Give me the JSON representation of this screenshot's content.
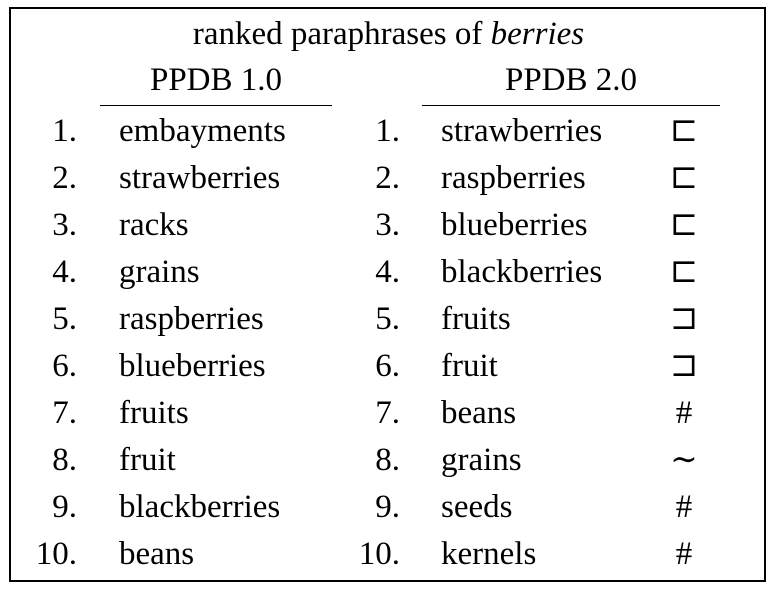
{
  "table": {
    "title_prefix": "ranked paraphrases of ",
    "title_word": "berries",
    "left_header": "PPDB 1.0",
    "right_header": "PPDB 2.0",
    "rows": [
      {
        "rank_left": "1.",
        "word_left": "embayments",
        "rank_right": "1.",
        "word_right": "strawberries",
        "relation": "⊏"
      },
      {
        "rank_left": "2.",
        "word_left": "strawberries",
        "rank_right": "2.",
        "word_right": "raspberries",
        "relation": "⊏"
      },
      {
        "rank_left": "3.",
        "word_left": "racks",
        "rank_right": "3.",
        "word_right": "blueberries",
        "relation": "⊏"
      },
      {
        "rank_left": "4.",
        "word_left": "grains",
        "rank_right": "4.",
        "word_right": "blackberries",
        "relation": "⊏"
      },
      {
        "rank_left": "5.",
        "word_left": "raspberries",
        "rank_right": "5.",
        "word_right": "fruits",
        "relation": "⊐"
      },
      {
        "rank_left": "6.",
        "word_left": "blueberries",
        "rank_right": "6.",
        "word_right": "fruit",
        "relation": "⊐"
      },
      {
        "rank_left": "7.",
        "word_left": "fruits",
        "rank_right": "7.",
        "word_right": "beans",
        "relation": "#"
      },
      {
        "rank_left": "8.",
        "word_left": "fruit",
        "rank_right": "8.",
        "word_right": "grains",
        "relation": "∼"
      },
      {
        "rank_left": "9.",
        "word_left": "blackberries",
        "rank_right": "9.",
        "word_right": "seeds",
        "relation": "#"
      },
      {
        "rank_left": "10.",
        "word_left": "beans",
        "rank_right": "10.",
        "word_right": "kernels",
        "relation": "#"
      }
    ]
  }
}
